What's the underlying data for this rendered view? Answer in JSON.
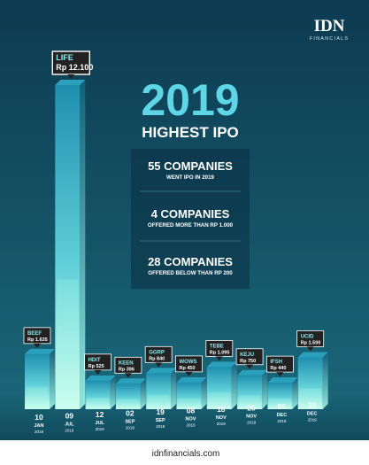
{
  "brand": {
    "logo_text": "IDN",
    "logo_subtext": "FINANCIALS",
    "footer_url": "idnfinancials.com"
  },
  "headline": {
    "year": "2019",
    "subtitle": "HIGHEST IPO"
  },
  "stats": [
    {
      "value": "55 COMPANIES",
      "caption": "WENT IPO IN 2019"
    },
    {
      "value": "4 COMPANIES",
      "caption": "OFFERED MORE THAN RP 1.000"
    },
    {
      "value": "28 COMPANIES",
      "caption": "OFFERED BELOW THAN RP 200"
    }
  ],
  "colors": {
    "background_top": "#0d3a50",
    "background_bottom": "#1b6a7c",
    "bar_glow": "#9fffe6",
    "headline": "#5fd6e6",
    "label_box": "#222222",
    "footer_bg": "#ffffff"
  },
  "chart_data": {
    "type": "bar",
    "title": "2019 HIGHEST IPO",
    "value_prefix": "Rp",
    "categories": [
      "BEEF",
      "LIFE",
      "HDIT",
      "KEEN",
      "GGRP",
      "WOWS",
      "TEBE",
      "KEJU",
      "IFSH",
      "UCID"
    ],
    "value_labels": [
      "1.635",
      "12.100",
      "525",
      "396",
      "840",
      "450",
      "1.095",
      "750",
      "440",
      "1.500"
    ],
    "values": [
      1635,
      12100,
      525,
      396,
      840,
      450,
      1095,
      750,
      440,
      1500
    ],
    "dates": [
      [
        "10",
        "JAN",
        "2019"
      ],
      [
        "09",
        "JUL",
        "2019"
      ],
      [
        "12",
        "JUL",
        "2019"
      ],
      [
        "02",
        "SEP",
        "2019"
      ],
      [
        "19",
        "SEP",
        "2019"
      ],
      [
        "08",
        "NOV",
        "2019"
      ],
      [
        "18",
        "NOV",
        "2019"
      ],
      [
        "25",
        "NOV",
        "2019"
      ],
      [
        "05",
        "DEC",
        "2019"
      ],
      [
        "20",
        "DEC",
        "2019"
      ]
    ],
    "ylim": [
      0,
      12100
    ],
    "grid": false,
    "legend": "none"
  }
}
